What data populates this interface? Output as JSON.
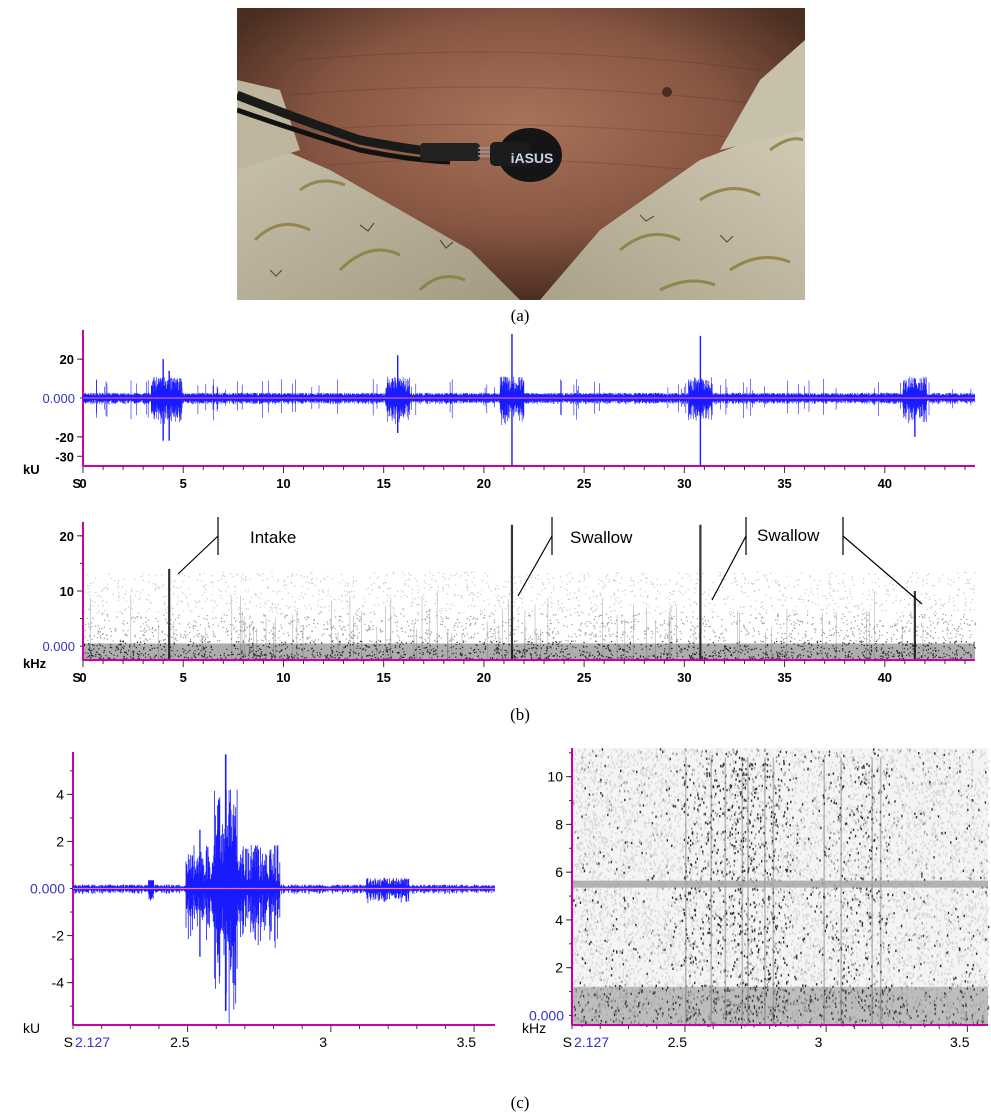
{
  "captions": {
    "a": "(a)",
    "b": "(b)",
    "c": "(c)"
  },
  "photo": {
    "sensor_brand": "iASUS"
  },
  "chart_data": [
    {
      "id": "b-waveform",
      "type": "line",
      "xlabel": "S",
      "ylabel": "kU",
      "xlim": [
        0,
        44.5
      ],
      "ylim": [
        -35,
        35
      ],
      "x_ticks": [
        0,
        5,
        10,
        15,
        20,
        25,
        30,
        35,
        40
      ],
      "x_tick_labels": [
        "0",
        "5",
        "10",
        "15",
        "20",
        "25",
        "30",
        "35",
        "40"
      ],
      "y_ticks": [
        20,
        -20,
        -30
      ],
      "y_tick_labels": [
        "20",
        "-20",
        "-30"
      ],
      "zero_label": "0.000",
      "spikes": [
        {
          "t": 4.0,
          "up": 20,
          "down": -22
        },
        {
          "t": 4.3,
          "up": 14,
          "down": -22
        },
        {
          "t": 15.7,
          "up": 22,
          "down": -18
        },
        {
          "t": 21.4,
          "up": 33,
          "down": -35
        },
        {
          "t": 30.8,
          "up": 32,
          "down": -35
        },
        {
          "t": 41.5,
          "up": 10,
          "down": -20
        }
      ]
    },
    {
      "id": "b-spectrogram",
      "type": "heatmap",
      "xlabel": "S",
      "ylabel": "kHz",
      "xlim": [
        0,
        44.5
      ],
      "ylim": [
        -2.5,
        22.5
      ],
      "x_ticks": [
        0,
        5,
        10,
        15,
        20,
        25,
        30,
        35,
        40
      ],
      "x_tick_labels": [
        "0",
        "5",
        "10",
        "15",
        "20",
        "25",
        "30",
        "35",
        "40"
      ],
      "y_ticks": [
        20,
        10
      ],
      "y_tick_labels": [
        "20",
        "10"
      ],
      "zero_label": "0.000",
      "events": [
        {
          "t": 4.3,
          "top_khz": 14
        },
        {
          "t": 21.4,
          "top_khz": 22
        },
        {
          "t": 30.8,
          "top_khz": 22
        },
        {
          "t": 41.5,
          "top_khz": 10
        }
      ],
      "annotations": [
        {
          "text": "Intake",
          "targets": [
            4.3
          ]
        },
        {
          "text": "Swallow",
          "targets": [
            21.4
          ]
        },
        {
          "text": "Swallow",
          "targets": [
            30.8,
            41.5
          ]
        }
      ]
    },
    {
      "id": "c-waveform",
      "type": "line",
      "xlabel": "S",
      "ylabel": "kU",
      "xlim": [
        2.127,
        3.6
      ],
      "ylim": [
        -5.8,
        5.8
      ],
      "x_ticks": [
        2.5,
        3,
        3.5
      ],
      "x_tick_labels": [
        "2.5",
        "3",
        "3.5"
      ],
      "x_start_label": "2.127",
      "y_ticks": [
        4,
        2,
        -2,
        -4
      ],
      "y_tick_labels": [
        "4",
        "2",
        "-2",
        "-4"
      ],
      "zero_label": "0.000",
      "peak_up": 5.7,
      "peak_down": -5.2
    },
    {
      "id": "c-spectrogram",
      "type": "heatmap",
      "xlabel": "S",
      "ylabel": "kHz",
      "xlim": [
        2.127,
        3.6
      ],
      "ylim": [
        -0.4,
        11.2
      ],
      "x_ticks": [
        2.5,
        3,
        3.5
      ],
      "x_tick_labels": [
        "2.5",
        "3",
        "3.5"
      ],
      "x_start_label": "2.127",
      "y_ticks": [
        10,
        8,
        6,
        4,
        2
      ],
      "y_tick_labels": [
        "10",
        "8",
        "6",
        "4",
        "2"
      ],
      "zero_label": "0.000",
      "tone_khz": 5.5
    }
  ]
}
